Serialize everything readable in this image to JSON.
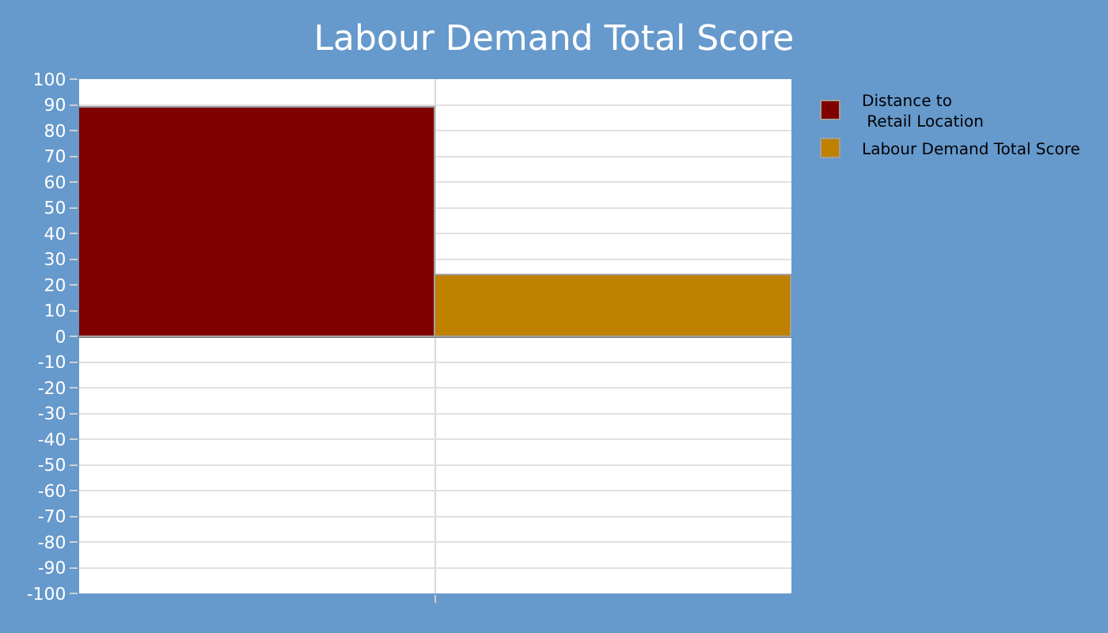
{
  "chart_data": {
    "type": "bar",
    "title": "Labour Demand Total Score",
    "categories": [
      null
    ],
    "series": [
      {
        "name": "Distance to\n Retail Location",
        "color": "#800000",
        "values": [
          89
        ]
      },
      {
        "name": "Labour Demand Total Score",
        "color": "#c08000",
        "values": [
          24
        ]
      }
    ],
    "ylim": [
      -100,
      100
    ],
    "yticks": [
      -100,
      -90,
      -80,
      -70,
      -60,
      -50,
      -40,
      -30,
      -20,
      -10,
      0,
      10,
      20,
      30,
      40,
      50,
      60,
      70,
      80,
      90,
      100
    ],
    "grid": true,
    "legend": "top right",
    "tick_labels": "y"
  }
}
